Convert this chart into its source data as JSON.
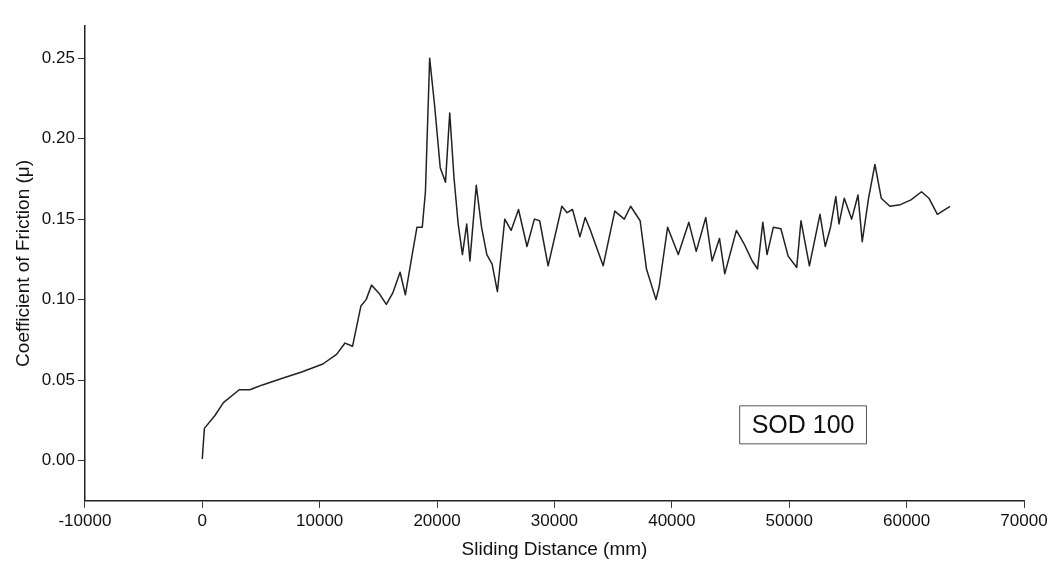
{
  "chart_data": {
    "type": "line",
    "xlabel": "Sliding Distance (mm)",
    "ylabel": "Coefficient of Friction (μ)",
    "xlim": [
      -10000,
      70000
    ],
    "xticks": [
      -10000,
      0,
      10000,
      20000,
      30000,
      40000,
      50000,
      60000,
      70000
    ],
    "ylim": [
      -0.025,
      0.27
    ],
    "yticks": [
      {
        "value": 0,
        "label": "0.00"
      },
      0.05,
      {
        "value": 0.1,
        "label": "0.10"
      },
      0.15,
      {
        "value": 0.2,
        "label": "0.20"
      },
      0.25
    ],
    "grid": false,
    "legend": false,
    "marker": "none",
    "line_style": "solid",
    "annotations": [
      "SOD 100"
    ],
    "series": [
      {
        "color": "#222222",
        "x": [
          0,
          180,
          1080,
          1800,
          3150,
          4050,
          5130,
          6760,
          8470,
          10270,
          11440,
          12160,
          12800,
          13510,
          13960,
          14420,
          15050,
          15680,
          16220,
          16850,
          17300,
          17930,
          18290,
          18740,
          19010,
          19370,
          19800,
          20270,
          20720,
          21080,
          21440,
          21800,
          22160,
          22530,
          22800,
          23340,
          23790,
          24240,
          24690,
          25140,
          25770,
          26310,
          26940,
          27660,
          28290,
          28740,
          29460,
          30630,
          31080,
          31540,
          32170,
          32620,
          33070,
          34150,
          35140,
          35950,
          36490,
          37300,
          37840,
          38650,
          38920,
          39640,
          40550,
          41450,
          42080,
          42890,
          43430,
          44060,
          44510,
          45500,
          46130,
          46850,
          47300,
          47750,
          48110,
          48650,
          49290,
          49910,
          50640,
          51000,
          51720,
          52620,
          53070,
          53520,
          53970,
          54240,
          54690,
          55320,
          55860,
          56220,
          56760,
          57300,
          57840,
          58570,
          59470,
          60370,
          61270,
          61900,
          62620,
          63700
        ],
        "values": [
          0.001,
          0.02,
          0.028,
          0.036,
          0.044,
          0.044,
          0.047,
          0.051,
          0.055,
          0.06,
          0.066,
          0.073,
          0.071,
          0.096,
          0.1,
          0.109,
          0.104,
          0.097,
          0.104,
          0.117,
          0.103,
          0.13,
          0.145,
          0.145,
          0.167,
          0.25,
          0.22,
          0.182,
          0.173,
          0.216,
          0.176,
          0.147,
          0.128,
          0.147,
          0.124,
          0.171,
          0.145,
          0.128,
          0.122,
          0.105,
          0.15,
          0.143,
          0.156,
          0.133,
          0.15,
          0.149,
          0.121,
          0.158,
          0.154,
          0.156,
          0.139,
          0.151,
          0.143,
          0.121,
          0.155,
          0.15,
          0.158,
          0.149,
          0.119,
          0.1,
          0.108,
          0.145,
          0.128,
          0.148,
          0.13,
          0.151,
          0.124,
          0.138,
          0.116,
          0.143,
          0.135,
          0.124,
          0.119,
          0.148,
          0.128,
          0.145,
          0.144,
          0.127,
          0.12,
          0.149,
          0.121,
          0.153,
          0.133,
          0.145,
          0.164,
          0.147,
          0.163,
          0.15,
          0.165,
          0.136,
          0.163,
          0.184,
          0.163,
          0.158,
          0.159,
          0.162,
          0.167,
          0.163,
          0.153,
          0.158
        ]
      }
    ]
  }
}
